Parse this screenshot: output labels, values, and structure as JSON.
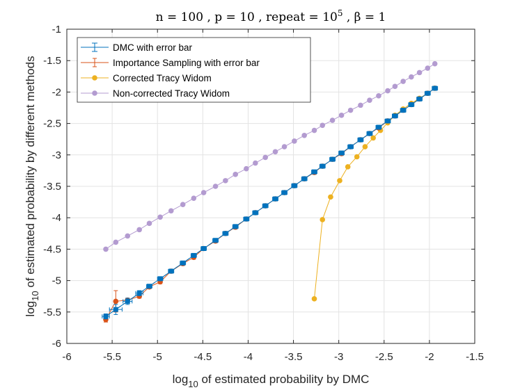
{
  "chart_data": {
    "type": "line",
    "title": {
      "prefix": "n = 100 , p = 10 , repeat = 10",
      "exponent": "5",
      "suffix": " , β = 1"
    },
    "xlabel": {
      "prefix": "log",
      "sub": "10",
      "rest": " of estimated probability by DMC"
    },
    "ylabel": {
      "prefix": "log",
      "sub": "10",
      "rest": " of estimated probability by different methods"
    },
    "xlim": [
      -6,
      -1.5
    ],
    "ylim": [
      -6,
      -1
    ],
    "xticks": [
      -6,
      -5.5,
      -5,
      -4.5,
      -4,
      -3.5,
      -3,
      -2.5,
      -2,
      -1.5
    ],
    "xtick_labels": [
      "-6",
      "-5.5",
      "-5",
      "-4.5",
      "-4",
      "-3.5",
      "-3",
      "-2.5",
      "-2",
      "-1.5"
    ],
    "yticks": [
      -6,
      -5.5,
      -5,
      -4.5,
      -4,
      -3.5,
      -3,
      -2.5,
      -2,
      -1.5,
      -1
    ],
    "ytick_labels": [
      "-6",
      "-5.5",
      "-5",
      "-4.5",
      "-4",
      "-3.5",
      "-3",
      "-2.5",
      "-2",
      "-1.5",
      "-1"
    ],
    "grid": true,
    "legend_position": "top-left",
    "x": [
      -5.57,
      -5.46,
      -5.33,
      -5.2,
      -5.09,
      -4.97,
      -4.85,
      -4.72,
      -4.6,
      -4.49,
      -4.36,
      -4.25,
      -4.14,
      -4.02,
      -3.92,
      -3.81,
      -3.7,
      -3.6,
      -3.49,
      -3.38,
      -3.27,
      -3.18,
      -3.07,
      -2.97,
      -2.87,
      -2.76,
      -2.66,
      -2.56,
      -2.46,
      -2.38,
      -2.29,
      -2.2,
      -2.11,
      -2.02,
      -1.94
    ],
    "series": [
      {
        "name": "DMC with error bar",
        "color": "#0072BD",
        "marker": "square",
        "y": [
          -5.57,
          -5.46,
          -5.33,
          -5.2,
          -5.09,
          -4.97,
          -4.85,
          -4.72,
          -4.6,
          -4.49,
          -4.36,
          -4.25,
          -4.14,
          -4.02,
          -3.92,
          -3.81,
          -3.7,
          -3.6,
          -3.49,
          -3.38,
          -3.27,
          -3.18,
          -3.07,
          -2.97,
          -2.87,
          -2.76,
          -2.66,
          -2.56,
          -2.46,
          -2.38,
          -2.29,
          -2.2,
          -2.11,
          -2.02,
          -1.94
        ],
        "err_x": [
          0.04,
          0.07,
          0.05,
          0.04,
          0.03,
          0.03,
          0.03,
          0.03,
          0.03,
          0.03,
          0.03,
          0.03,
          0.03,
          0.03,
          0.03,
          0.03,
          0.03,
          0.03,
          0.03,
          0.03,
          0.03,
          0.03,
          0.03,
          0.03,
          0.03,
          0.03,
          0.03,
          0.03,
          0.03,
          0.03,
          0.03,
          0.03,
          0.03,
          0.03,
          0.03
        ],
        "err_y": [
          0.04,
          0.08,
          0.05,
          0.04,
          0.03,
          0.03,
          0.03,
          0.03,
          0.03,
          0.03,
          0.03,
          0.03,
          0.03,
          0.03,
          0.03,
          0.03,
          0.03,
          0.03,
          0.03,
          0.03,
          0.03,
          0.03,
          0.03,
          0.03,
          0.03,
          0.03,
          0.03,
          0.03,
          0.03,
          0.03,
          0.03,
          0.03,
          0.03,
          0.03,
          0.03
        ]
      },
      {
        "name": "Importance Sampling with error bar",
        "color": "#D95319",
        "marker": "circle",
        "y": [
          -5.62,
          -5.33,
          -5.31,
          -5.25,
          -5.1,
          -5.02,
          -4.85,
          -4.73,
          -4.63,
          -4.49,
          -4.37,
          -4.25,
          -4.15,
          -4.02,
          -3.92,
          -3.81,
          -3.7,
          -3.6,
          -3.49,
          -3.38,
          -3.28,
          -3.18,
          -3.07,
          -2.98,
          -2.87,
          -2.76,
          -2.66,
          -2.57,
          -2.46,
          -2.38,
          -2.29,
          -2.2,
          -2.11,
          -2.02,
          -1.94
        ],
        "err_y": [
          0.04,
          0.17,
          0.03,
          0.03,
          0.03,
          0.03,
          0.03,
          0.03,
          0.03,
          0.03,
          0.03,
          0.03,
          0.03,
          0.03,
          0.03,
          0.03,
          0.03,
          0.03,
          0.03,
          0.03,
          0.03,
          0.03,
          0.03,
          0.03,
          0.03,
          0.03,
          0.03,
          0.03,
          0.03,
          0.03,
          0.03,
          0.03,
          0.03,
          0.03,
          0.03
        ]
      },
      {
        "name": "Corrected Tracy Widom",
        "color": "#EDB120",
        "marker": "circle",
        "x": [
          -3.27,
          -3.18,
          -3.09,
          -2.99,
          -2.9,
          -2.8,
          -2.71,
          -2.62,
          -2.54,
          -2.46,
          -2.38,
          -2.29,
          -2.2,
          -2.11,
          -2.02,
          -1.94
        ],
        "y": [
          -5.29,
          -4.03,
          -3.67,
          -3.41,
          -3.19,
          -3.03,
          -2.87,
          -2.73,
          -2.61,
          -2.49,
          -2.37,
          -2.27,
          -2.18,
          -2.1,
          -2.02,
          -1.94
        ]
      },
      {
        "name": "Non-corrected Tracy Widom",
        "color": "#B39BD0",
        "marker": "circle",
        "y": [
          -4.5,
          -4.39,
          -4.29,
          -4.19,
          -4.09,
          -3.99,
          -3.89,
          -3.79,
          -3.69,
          -3.6,
          -3.5,
          -3.41,
          -3.31,
          -3.22,
          -3.13,
          -3.04,
          -2.95,
          -2.87,
          -2.78,
          -2.69,
          -2.61,
          -2.53,
          -2.45,
          -2.37,
          -2.29,
          -2.21,
          -2.13,
          -2.06,
          -1.98,
          -1.91,
          -1.83,
          -1.76,
          -1.69,
          -1.62,
          -1.55
        ]
      }
    ]
  }
}
